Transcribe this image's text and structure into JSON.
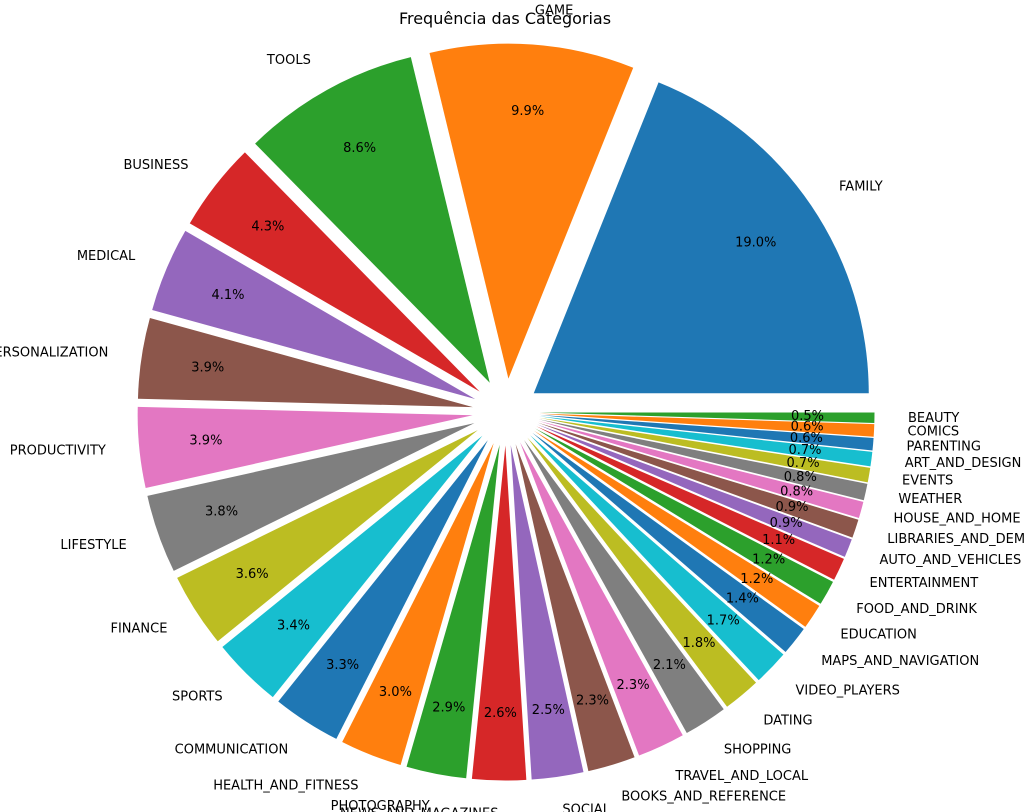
{
  "chart_data": {
    "type": "pie",
    "title": "Frequência das Categorias",
    "start_angle_deg": 0,
    "direction": "counterclockwise",
    "explode": 0.1,
    "percent_format": "{:.1f}%",
    "slices": [
      {
        "label": "FAMILY",
        "value": 19.0,
        "color": "#1f77b4"
      },
      {
        "label": "GAME",
        "value": 9.9,
        "color": "#ff7f0e"
      },
      {
        "label": "TOOLS",
        "value": 8.6,
        "color": "#2ca02c"
      },
      {
        "label": "BUSINESS",
        "value": 4.3,
        "color": "#d62728"
      },
      {
        "label": "MEDICAL",
        "value": 4.1,
        "color": "#9467bd"
      },
      {
        "label": "PERSONALIZATION",
        "value": 3.9,
        "color": "#8c564b"
      },
      {
        "label": "PRODUCTIVITY",
        "value": 3.9,
        "color": "#e377c2"
      },
      {
        "label": "LIFESTYLE",
        "value": 3.8,
        "color": "#7f7f7f"
      },
      {
        "label": "FINANCE",
        "value": 3.6,
        "color": "#bcbd22"
      },
      {
        "label": "SPORTS",
        "value": 3.4,
        "color": "#17becf"
      },
      {
        "label": "COMMUNICATION",
        "value": 3.3,
        "color": "#1f77b4"
      },
      {
        "label": "HEALTH_AND_FITNESS",
        "value": 3.0,
        "color": "#ff7f0e"
      },
      {
        "label": "PHOTOGRAPHY",
        "value": 2.9,
        "color": "#2ca02c"
      },
      {
        "label": "NEWS_AND_MAGAZINES",
        "value": 2.6,
        "color": "#d62728"
      },
      {
        "label": "SOCIAL",
        "value": 2.5,
        "color": "#9467bd"
      },
      {
        "label": "BOOKS_AND_REFERENCE",
        "value": 2.3,
        "color": "#8c564b"
      },
      {
        "label": "TRAVEL_AND_LOCAL",
        "value": 2.3,
        "color": "#e377c2"
      },
      {
        "label": "SHOPPING",
        "value": 2.1,
        "color": "#7f7f7f"
      },
      {
        "label": "DATING",
        "value": 1.8,
        "color": "#bcbd22"
      },
      {
        "label": "VIDEO_PLAYERS",
        "value": 1.7,
        "color": "#17becf"
      },
      {
        "label": "MAPS_AND_NAVIGATION",
        "value": 1.4,
        "color": "#1f77b4"
      },
      {
        "label": "EDUCATION",
        "value": 1.2,
        "color": "#ff7f0e"
      },
      {
        "label": "FOOD_AND_DRINK",
        "value": 1.2,
        "color": "#2ca02c"
      },
      {
        "label": "ENTERTAINMENT",
        "value": 1.1,
        "color": "#d62728"
      },
      {
        "label": "AUTO_AND_VEHICLES",
        "value": 0.9,
        "color": "#9467bd"
      },
      {
        "label": "LIBRARIES_AND_DEMO",
        "value": 0.9,
        "color": "#8c564b"
      },
      {
        "label": "HOUSE_AND_HOME",
        "value": 0.8,
        "color": "#e377c2"
      },
      {
        "label": "WEATHER",
        "value": 0.8,
        "color": "#7f7f7f"
      },
      {
        "label": "EVENTS",
        "value": 0.7,
        "color": "#bcbd22"
      },
      {
        "label": "ART_AND_DESIGN",
        "value": 0.7,
        "color": "#17becf"
      },
      {
        "label": "PARENTING",
        "value": 0.6,
        "color": "#1f77b4"
      },
      {
        "label": "COMICS",
        "value": 0.6,
        "color": "#ff7f0e"
      },
      {
        "label": "BEAUTY",
        "value": 0.5,
        "color": "#2ca02c"
      }
    ]
  }
}
